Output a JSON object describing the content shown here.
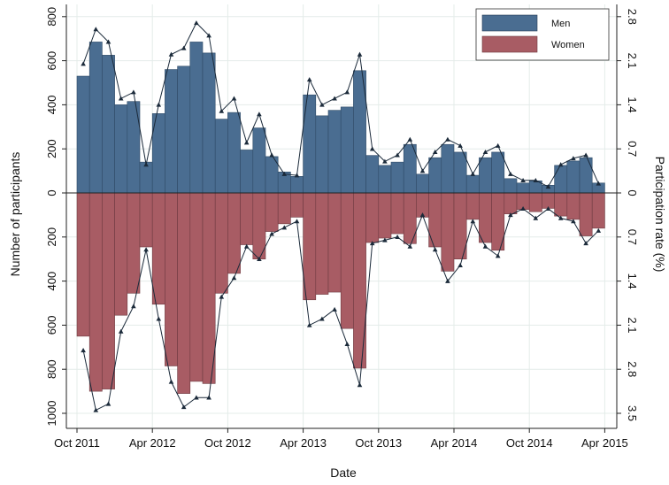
{
  "chart_data": {
    "type": "bar",
    "xlabel": "Date",
    "ylabel": "Number of participants",
    "y2label": "Participation rate (%)",
    "x_ticks": [
      "Oct 2011",
      "Apr 2012",
      "Oct 2012",
      "Apr 2013",
      "Oct 2013",
      "Apr 2014",
      "Oct 2014",
      "Apr 2015"
    ],
    "x_tick_month_index": [
      0,
      6,
      12,
      18,
      24,
      30,
      36,
      42
    ],
    "y_ticks": [
      {
        "value": 800,
        "label": "800"
      },
      {
        "value": 600,
        "label": "600"
      },
      {
        "value": 400,
        "label": "400"
      },
      {
        "value": 200,
        "label": "200"
      },
      {
        "value": 0,
        "label": "0"
      },
      {
        "value": -200,
        "label": "200"
      },
      {
        "value": -400,
        "label": "400"
      },
      {
        "value": -600,
        "label": "600"
      },
      {
        "value": -800,
        "label": "800"
      },
      {
        "value": -1000,
        "label": "1000"
      }
    ],
    "y2_ticks": [
      {
        "value": 2.8,
        "label": "2.8"
      },
      {
        "value": 2.1,
        "label": "2.1"
      },
      {
        "value": 1.4,
        "label": "1.4"
      },
      {
        "value": 0.7,
        "label": "0.7"
      },
      {
        "value": 0,
        "label": "0"
      },
      {
        "value": -0.7,
        "label": "0.7"
      },
      {
        "value": -1.4,
        "label": "1.4"
      },
      {
        "value": -2.1,
        "label": "2.1"
      },
      {
        "value": -2.8,
        "label": "2.8"
      },
      {
        "value": -3.5,
        "label": "3.5"
      }
    ],
    "ylim": [
      -1050,
      830
    ],
    "legend": {
      "position": "top-right",
      "entries": [
        {
          "name": "Men",
          "color": "#4a6d91"
        },
        {
          "name": "Women",
          "color": "#a85c64"
        }
      ]
    },
    "colors": {
      "men": "#4a6d91",
      "women": "#a85c64",
      "line": "#1b2a3a",
      "grid": "#e4ece9"
    },
    "x_months_start": "Oct 2011",
    "series": [
      {
        "name": "Men",
        "values": [
          530,
          685,
          625,
          400,
          415,
          140,
          360,
          560,
          575,
          685,
          635,
          335,
          365,
          195,
          295,
          165,
          95,
          75,
          445,
          350,
          375,
          390,
          555,
          170,
          125,
          140,
          220,
          85,
          160,
          220,
          185,
          80,
          160,
          185,
          65,
          45,
          55,
          35,
          125,
          145,
          160,
          45
        ],
        "rate": [
          2.05,
          2.6,
          2.4,
          1.5,
          1.6,
          0.45,
          1.4,
          2.2,
          2.3,
          2.7,
          2.5,
          1.3,
          1.5,
          0.8,
          1.25,
          0.6,
          0.3,
          0.28,
          1.8,
          1.4,
          1.5,
          1.6,
          2.2,
          0.7,
          0.5,
          0.6,
          0.85,
          0.35,
          0.65,
          0.85,
          0.75,
          0.3,
          0.65,
          0.75,
          0.3,
          0.2,
          0.2,
          0.1,
          0.45,
          0.55,
          0.6,
          0.15
        ]
      },
      {
        "name": "Women",
        "values": [
          650,
          900,
          890,
          555,
          455,
          245,
          505,
          785,
          910,
          855,
          865,
          455,
          365,
          235,
          300,
          175,
          140,
          110,
          485,
          460,
          450,
          615,
          795,
          225,
          205,
          185,
          230,
          110,
          245,
          355,
          300,
          120,
          225,
          260,
          95,
          75,
          85,
          70,
          105,
          120,
          195,
          160
        ],
        "rate": [
          2.5,
          3.45,
          3.35,
          2.2,
          1.8,
          0.9,
          2.0,
          3.0,
          3.4,
          3.25,
          3.25,
          1.65,
          1.35,
          0.85,
          1.05,
          0.65,
          0.55,
          0.45,
          2.1,
          2.0,
          1.85,
          2.4,
          3.05,
          0.8,
          0.75,
          0.7,
          0.85,
          0.35,
          0.9,
          1.4,
          1.15,
          0.45,
          0.85,
          1.0,
          0.35,
          0.25,
          0.4,
          0.25,
          0.4,
          0.45,
          0.8,
          0.6
        ]
      }
    ]
  }
}
